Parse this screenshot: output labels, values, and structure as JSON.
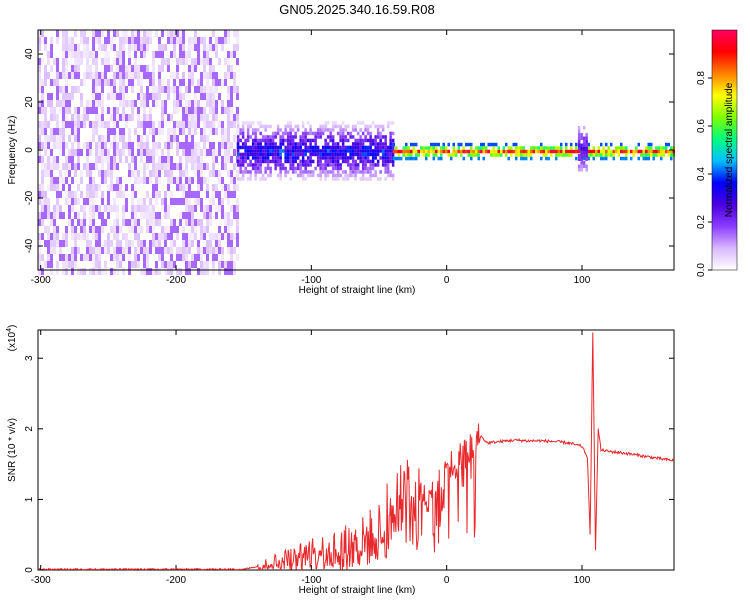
{
  "title": "GN05.2025.340.16.59.R08",
  "chart_data": [
    {
      "type": "heatmap",
      "xlabel": "Height of straight line (km)",
      "ylabel": "Frequency (Hz)",
      "xlim": [
        -302,
        168
      ],
      "ylim": [
        -50,
        50
      ],
      "xticks": [
        -300,
        -200,
        -100,
        0,
        100
      ],
      "yticks": [
        -40,
        -20,
        0,
        20,
        40
      ],
      "colorbar": {
        "label": "Normalized spectral amplitude",
        "range": [
          0,
          1
        ],
        "ticks": [
          0.0,
          0.2,
          0.4,
          0.6,
          0.8
        ],
        "stops": [
          "#ffffff",
          "#d9b8ff",
          "#8a3dff",
          "#4a00e0",
          "#0000ff",
          "#00bfff",
          "#00ff80",
          "#80ff00",
          "#ffff00",
          "#ff8000",
          "#ff0000",
          "#ff0060"
        ]
      },
      "regions": [
        {
          "name": "noise",
          "x_range": [
            -302,
            -155
          ],
          "freq_range": [
            -50,
            50
          ],
          "amplitude": [
            0.02,
            0.15
          ]
        },
        {
          "name": "broadband-band",
          "x_range": [
            -155,
            -40
          ],
          "freq_range": [
            -12,
            12
          ],
          "amplitude": [
            0.05,
            0.45
          ]
        },
        {
          "name": "narrow-band",
          "x_range": [
            -40,
            168
          ],
          "freq_range": [
            -3,
            3
          ],
          "amplitude": [
            0.4,
            1.0
          ]
        },
        {
          "name": "spike-near-100",
          "x_range": [
            97,
            104
          ],
          "freq_range": [
            -8,
            10
          ],
          "amplitude": [
            0.1,
            0.3
          ]
        }
      ]
    },
    {
      "type": "line",
      "xlabel": "Height of straight line (km)",
      "ylabel": "SNR (10 * v/v)",
      "y_multiplier": "(x10",
      "y_multiplier_exp": "4",
      "y_multiplier_close": ")",
      "xlim": [
        -302,
        168
      ],
      "ylim": [
        0,
        3.4
      ],
      "xticks": [
        -300,
        -200,
        -100,
        0,
        100
      ],
      "yticks": [
        0,
        1,
        2,
        3
      ],
      "color": "#e8282b",
      "series": [
        {
          "x": [
            -302,
            -200,
            -150,
            -140,
            -120,
            -100,
            -80,
            -60,
            -50,
            -40,
            -30,
            -22,
            -20,
            -10,
            0,
            10,
            20,
            25,
            30,
            40,
            50,
            60,
            70,
            80,
            90,
            100,
            104,
            106,
            108,
            110,
            112,
            114,
            120,
            130,
            140,
            150,
            160,
            168
          ],
          "y": [
            0.01,
            0.01,
            0.01,
            0.05,
            0.15,
            0.22,
            0.3,
            0.4,
            0.6,
            0.9,
            1.1,
            0.8,
            1.0,
            1.2,
            1.4,
            1.6,
            1.75,
            1.9,
            1.8,
            1.82,
            1.84,
            1.83,
            1.83,
            1.82,
            1.8,
            1.75,
            1.6,
            0.5,
            3.35,
            0.3,
            2.0,
            1.7,
            1.68,
            1.66,
            1.63,
            1.6,
            1.57,
            1.55
          ]
        }
      ]
    }
  ]
}
